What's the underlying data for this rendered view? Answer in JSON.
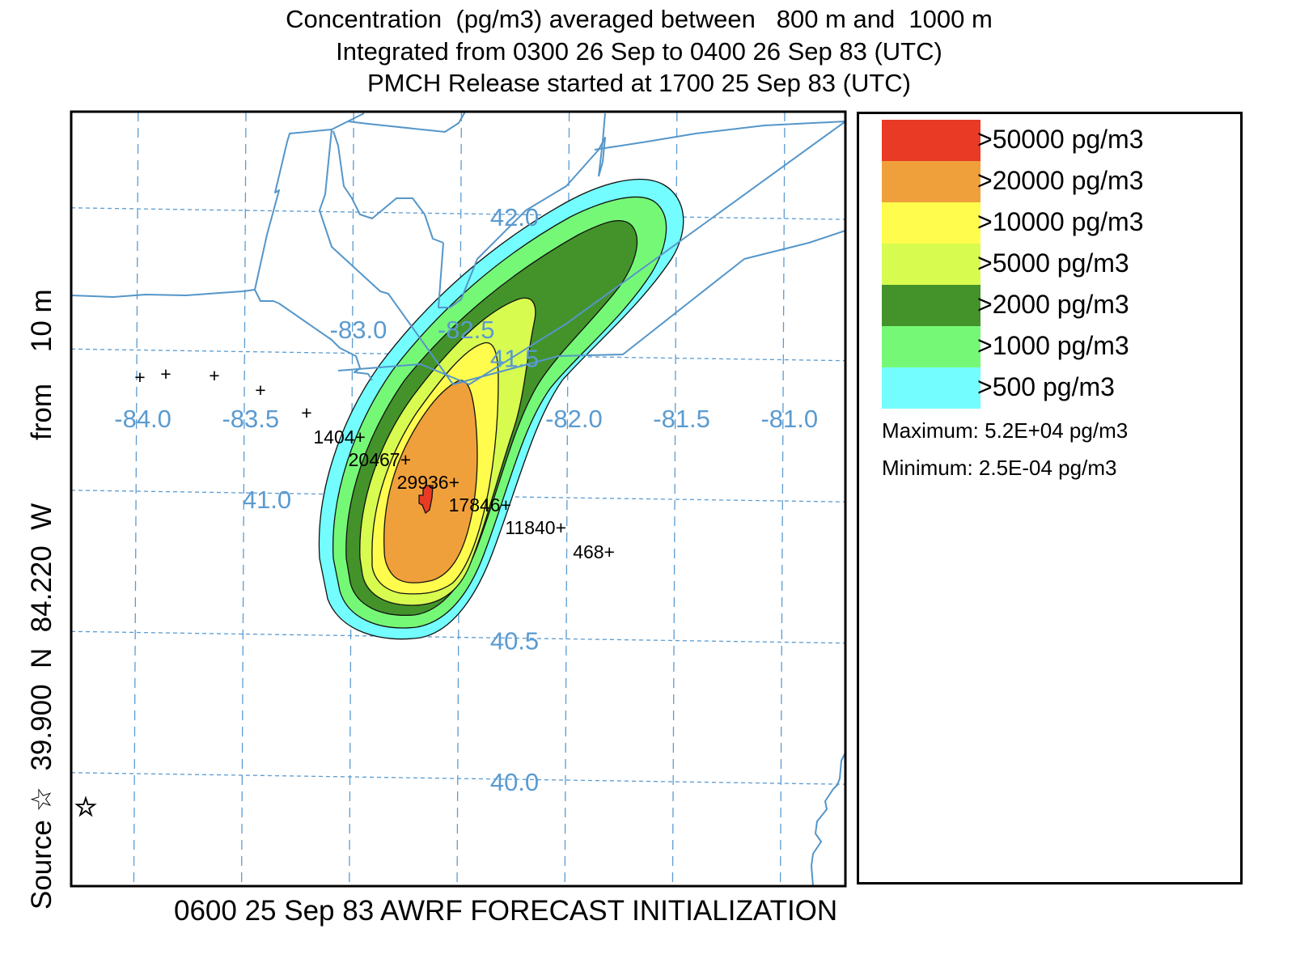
{
  "header": {
    "lines": [
      "Concentration  (pg/m3) averaged between   800 m and  1000 m",
      "Integrated from 0300 26 Sep to 0400 26 Sep 83 (UTC)",
      "PMCH Release started at 1700 25 Sep 83 (UTC)"
    ]
  },
  "side_label": "Source ☆  39.900  N  84.220  W        from    10 m",
  "footer": "0600 25 Sep 83 AWRF FORECAST INITIALIZATION",
  "map": {
    "lat_labels": [
      "42.0",
      "41.5",
      "41.0",
      "40.5",
      "40.0"
    ],
    "lon_labels": [
      "-84.0",
      "-83.5",
      "-83.0",
      "-82.5",
      "-82.0",
      "-81.5",
      "-81.0"
    ],
    "grid_color": "#5b9bd0",
    "boundary_color": "#5596c9",
    "source_marker": "star-icon",
    "observations": [
      {
        "value": "",
        "lon": -84.0,
        "lat": 41.43
      },
      {
        "value": "",
        "lon": -83.88,
        "lat": 41.44
      },
      {
        "value": "",
        "lon": -83.65,
        "lat": 41.44
      },
      {
        "value": "",
        "lon": -83.43,
        "lat": 41.39
      },
      {
        "value": "",
        "lon": -83.2,
        "lat": 41.3
      },
      {
        "value": "1404",
        "lon": -83.05,
        "lat": 41.25
      },
      {
        "value": "20467",
        "lon": -82.85,
        "lat": 41.18
      },
      {
        "value": "29936",
        "lon": -82.63,
        "lat": 41.1
      },
      {
        "value": "17846",
        "lon": -82.4,
        "lat": 41.02
      },
      {
        "value": "11840",
        "lon": -82.2,
        "lat": 40.95
      },
      {
        "value": "468",
        "lon": -81.98,
        "lat": 40.87
      }
    ]
  },
  "legend": {
    "items": [
      {
        "label": ">50000 pg/m3",
        "color": "#e83a24"
      },
      {
        "label": ">20000 pg/m3",
        "color": "#f0a03a"
      },
      {
        "label": ">10000 pg/m3",
        "color": "#fffc4d"
      },
      {
        "label": ">5000 pg/m3",
        "color": "#d8fb50"
      },
      {
        "label": ">2000 pg/m3",
        "color": "#43932a"
      },
      {
        "label": ">1000 pg/m3",
        "color": "#76f877"
      },
      {
        "label": ">500 pg/m3",
        "color": "#73fdfe"
      }
    ],
    "maximum": "Maximum: 5.2E+04 pg/m3",
    "minimum": "Minimum: 2.5E-04 pg/m3"
  }
}
